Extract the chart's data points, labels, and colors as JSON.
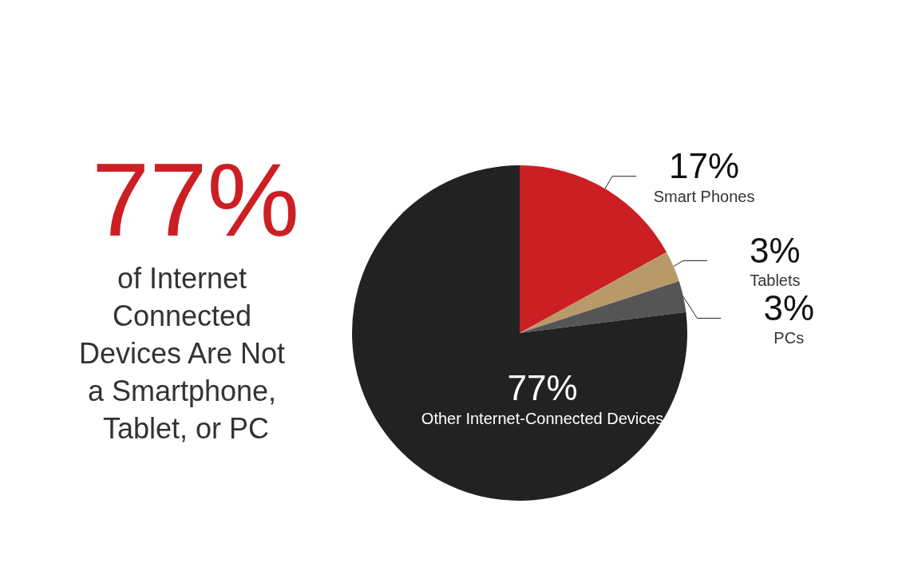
{
  "chart_data": {
    "type": "pie",
    "title": "77%",
    "subtitle": "of Internet Connected Devices Are Not a Smartphone, Tablet, or PC",
    "categories": [
      "Smart Phones",
      "Tablets",
      "PCs",
      "Other Internet-Connected Devices"
    ],
    "values": [
      17,
      3,
      3,
      77
    ],
    "colors": [
      "#cc1f24",
      "#b89a6a",
      "#555555",
      "#222222"
    ],
    "value_labels": [
      "17%",
      "3%",
      "3%",
      "77%"
    ]
  }
}
